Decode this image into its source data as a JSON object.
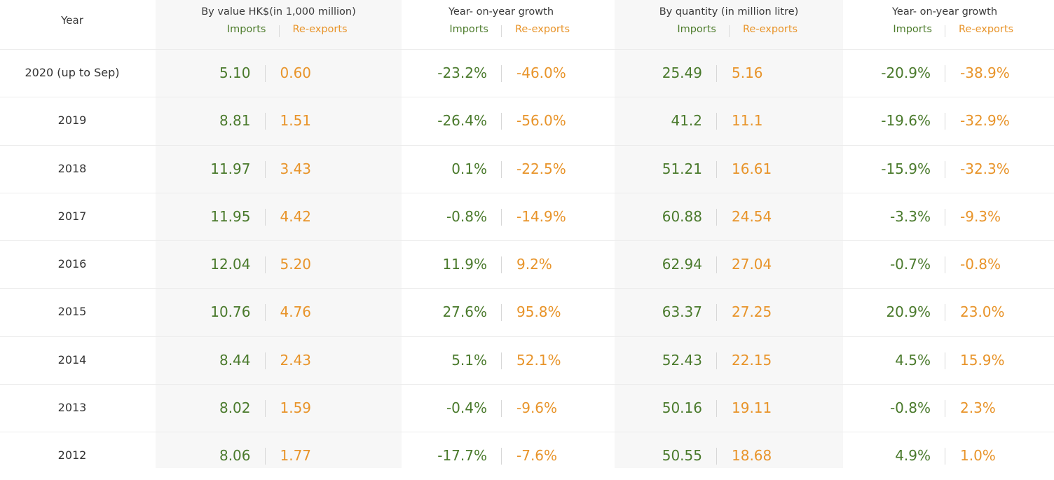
{
  "header": {
    "year_label": "Year",
    "groups": [
      {
        "title": "By value HK$(in 1,000 million)",
        "imports": "Imports",
        "reexports": "Re-exports"
      },
      {
        "title": "Year- on-year growth",
        "imports": "Imports",
        "reexports": "Re-exports"
      },
      {
        "title": "By quantity (in million litre)",
        "imports": "Imports",
        "reexports": "Re-exports"
      },
      {
        "title": "Year- on-year growth",
        "imports": "Imports",
        "reexports": "Re-exports"
      }
    ]
  },
  "colors": {
    "imports": "#4a7a2c",
    "reexports": "#e8942a",
    "band": "#f7f7f7"
  },
  "rows": [
    {
      "year": "2020 (up to Sep)",
      "cells": [
        [
          "5.10",
          "0.60"
        ],
        [
          "-23.2%",
          "-46.0%"
        ],
        [
          "25.49",
          "5.16"
        ],
        [
          "-20.9%",
          "-38.9%"
        ]
      ]
    },
    {
      "year": "2019",
      "cells": [
        [
          "8.81",
          "1.51"
        ],
        [
          "-26.4%",
          "-56.0%"
        ],
        [
          "41.2",
          "11.1"
        ],
        [
          "-19.6%",
          "-32.9%"
        ]
      ]
    },
    {
      "year": "2018",
      "cells": [
        [
          "11.97",
          "3.43"
        ],
        [
          "0.1%",
          "-22.5%"
        ],
        [
          "51.21",
          "16.61"
        ],
        [
          "-15.9%",
          "-32.3%"
        ]
      ]
    },
    {
      "year": "2017",
      "cells": [
        [
          "11.95",
          "4.42"
        ],
        [
          "-0.8%",
          "-14.9%"
        ],
        [
          "60.88",
          "24.54"
        ],
        [
          "-3.3%",
          "-9.3%"
        ]
      ]
    },
    {
      "year": "2016",
      "cells": [
        [
          "12.04",
          "5.20"
        ],
        [
          "11.9%",
          "9.2%"
        ],
        [
          "62.94",
          "27.04"
        ],
        [
          "-0.7%",
          "-0.8%"
        ]
      ]
    },
    {
      "year": "2015",
      "cells": [
        [
          "10.76",
          "4.76"
        ],
        [
          "27.6%",
          "95.8%"
        ],
        [
          "63.37",
          "27.25"
        ],
        [
          "20.9%",
          "23.0%"
        ]
      ]
    },
    {
      "year": "2014",
      "cells": [
        [
          "8.44",
          "2.43"
        ],
        [
          "5.1%",
          "52.1%"
        ],
        [
          "52.43",
          "22.15"
        ],
        [
          "4.5%",
          "15.9%"
        ]
      ]
    },
    {
      "year": "2013",
      "cells": [
        [
          "8.02",
          "1.59"
        ],
        [
          "-0.4%",
          "-9.6%"
        ],
        [
          "50.16",
          "19.11"
        ],
        [
          "-0.8%",
          "2.3%"
        ]
      ]
    },
    {
      "year": "2012",
      "cells": [
        [
          "8.06",
          "1.77"
        ],
        [
          "-17.7%",
          "-7.6%"
        ],
        [
          "50.55",
          "18.68"
        ],
        [
          "4.9%",
          "1.0%"
        ]
      ]
    }
  ]
}
